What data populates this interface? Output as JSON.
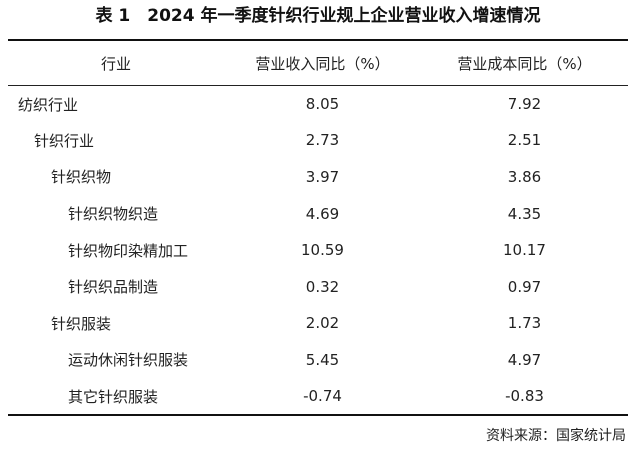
{
  "title": "表 1　2024 年一季度针织行业规上企业营业收入增速情况",
  "table": {
    "headers": [
      "行业",
      "营业收入同比（%）",
      "营业成本同比（%）"
    ],
    "rows": [
      {
        "name": "纺织行业",
        "level": 0,
        "revenue": "8.05",
        "cost": "7.92"
      },
      {
        "name": "针织行业",
        "level": 1,
        "revenue": "2.73",
        "cost": "2.51"
      },
      {
        "name": "针织织物",
        "level": 2,
        "revenue": "3.97",
        "cost": "3.86"
      },
      {
        "name": "针织织物织造",
        "level": 3,
        "revenue": "4.69",
        "cost": "4.35"
      },
      {
        "name": "针织物印染精加工",
        "level": 3,
        "revenue": "10.59",
        "cost": "10.17"
      },
      {
        "name": "针织织品制造",
        "level": 3,
        "revenue": "0.32",
        "cost": "0.97"
      },
      {
        "name": "针织服装",
        "level": 2,
        "revenue": "2.02",
        "cost": "1.73"
      },
      {
        "name": "运动休闲针织服装",
        "level": 3,
        "revenue": "5.45",
        "cost": "4.97"
      },
      {
        "name": "其它针织服装",
        "level": 3,
        "revenue": "-0.74",
        "cost": "-0.83"
      }
    ]
  },
  "source": "资料来源：国家统计局"
}
